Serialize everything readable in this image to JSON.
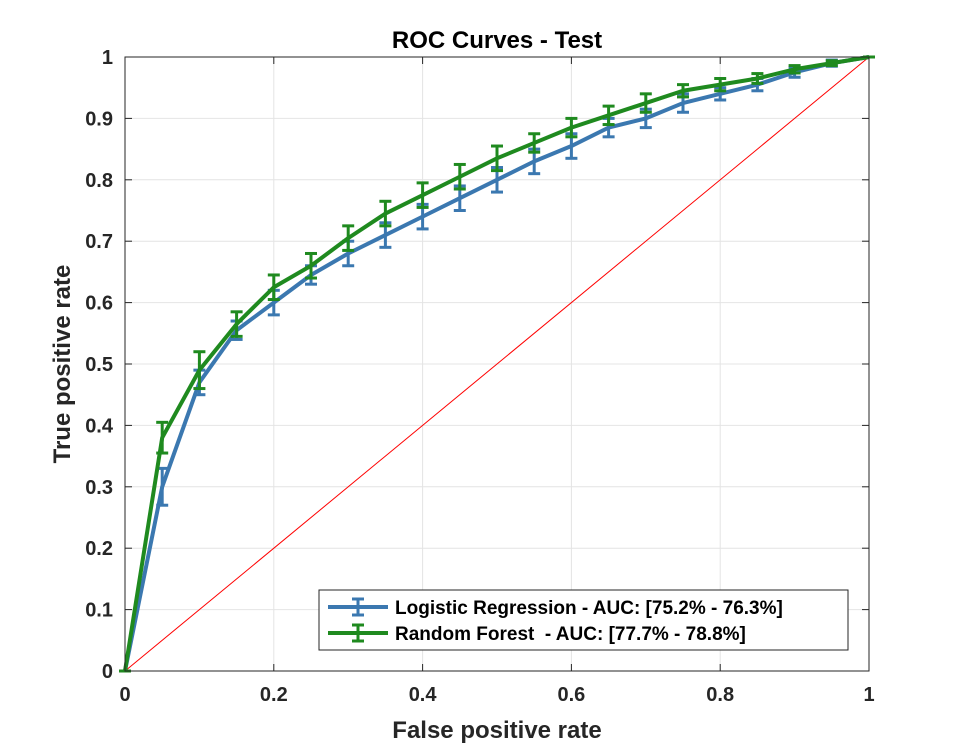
{
  "chart_data": {
    "type": "line",
    "title": "ROC Curves - Test",
    "xlabel": "False positive rate",
    "ylabel": "True positive rate",
    "xlim": [
      0,
      1
    ],
    "ylim": [
      0,
      1
    ],
    "x_ticks": [
      "0",
      "0.2",
      "0.4",
      "0.6",
      "0.8",
      "1"
    ],
    "y_ticks": [
      "0",
      "0.1",
      "0.2",
      "0.3",
      "0.4",
      "0.5",
      "0.6",
      "0.7",
      "0.8",
      "0.9",
      "1"
    ],
    "grid": true,
    "legend_position": "bottom-right",
    "x": [
      0,
      0.05,
      0.1,
      0.15,
      0.2,
      0.25,
      0.3,
      0.35,
      0.4,
      0.45,
      0.5,
      0.55,
      0.6,
      0.65,
      0.7,
      0.75,
      0.8,
      0.85,
      0.9,
      0.95,
      1
    ],
    "series": [
      {
        "name": "Logistic Regression - AUC: [75.2% - 76.3%]",
        "color": "#3b78b0",
        "values": [
          0,
          0.3,
          0.47,
          0.555,
          0.6,
          0.645,
          0.68,
          0.71,
          0.74,
          0.77,
          0.8,
          0.83,
          0.855,
          0.885,
          0.9,
          0.925,
          0.94,
          0.955,
          0.975,
          0.99,
          1
        ],
        "error": [
          0,
          0.03,
          0.02,
          0.015,
          0.02,
          0.015,
          0.02,
          0.02,
          0.02,
          0.02,
          0.02,
          0.02,
          0.02,
          0.015,
          0.015,
          0.015,
          0.01,
          0.01,
          0.008,
          0.005,
          0
        ]
      },
      {
        "name": "Random Forest  - AUC: [77.7% - 78.8%]",
        "color": "#1f8a1f",
        "values": [
          0,
          0.38,
          0.49,
          0.565,
          0.625,
          0.66,
          0.705,
          0.745,
          0.775,
          0.805,
          0.835,
          0.86,
          0.885,
          0.905,
          0.925,
          0.945,
          0.955,
          0.965,
          0.98,
          0.99,
          1
        ],
        "error": [
          0,
          0.025,
          0.03,
          0.02,
          0.02,
          0.02,
          0.02,
          0.02,
          0.02,
          0.02,
          0.02,
          0.015,
          0.015,
          0.015,
          0.015,
          0.01,
          0.01,
          0.008,
          0.006,
          0.004,
          0
        ]
      }
    ],
    "reference_line": {
      "color": "#ff0000",
      "x": [
        0,
        1
      ],
      "y": [
        0,
        1
      ]
    }
  }
}
